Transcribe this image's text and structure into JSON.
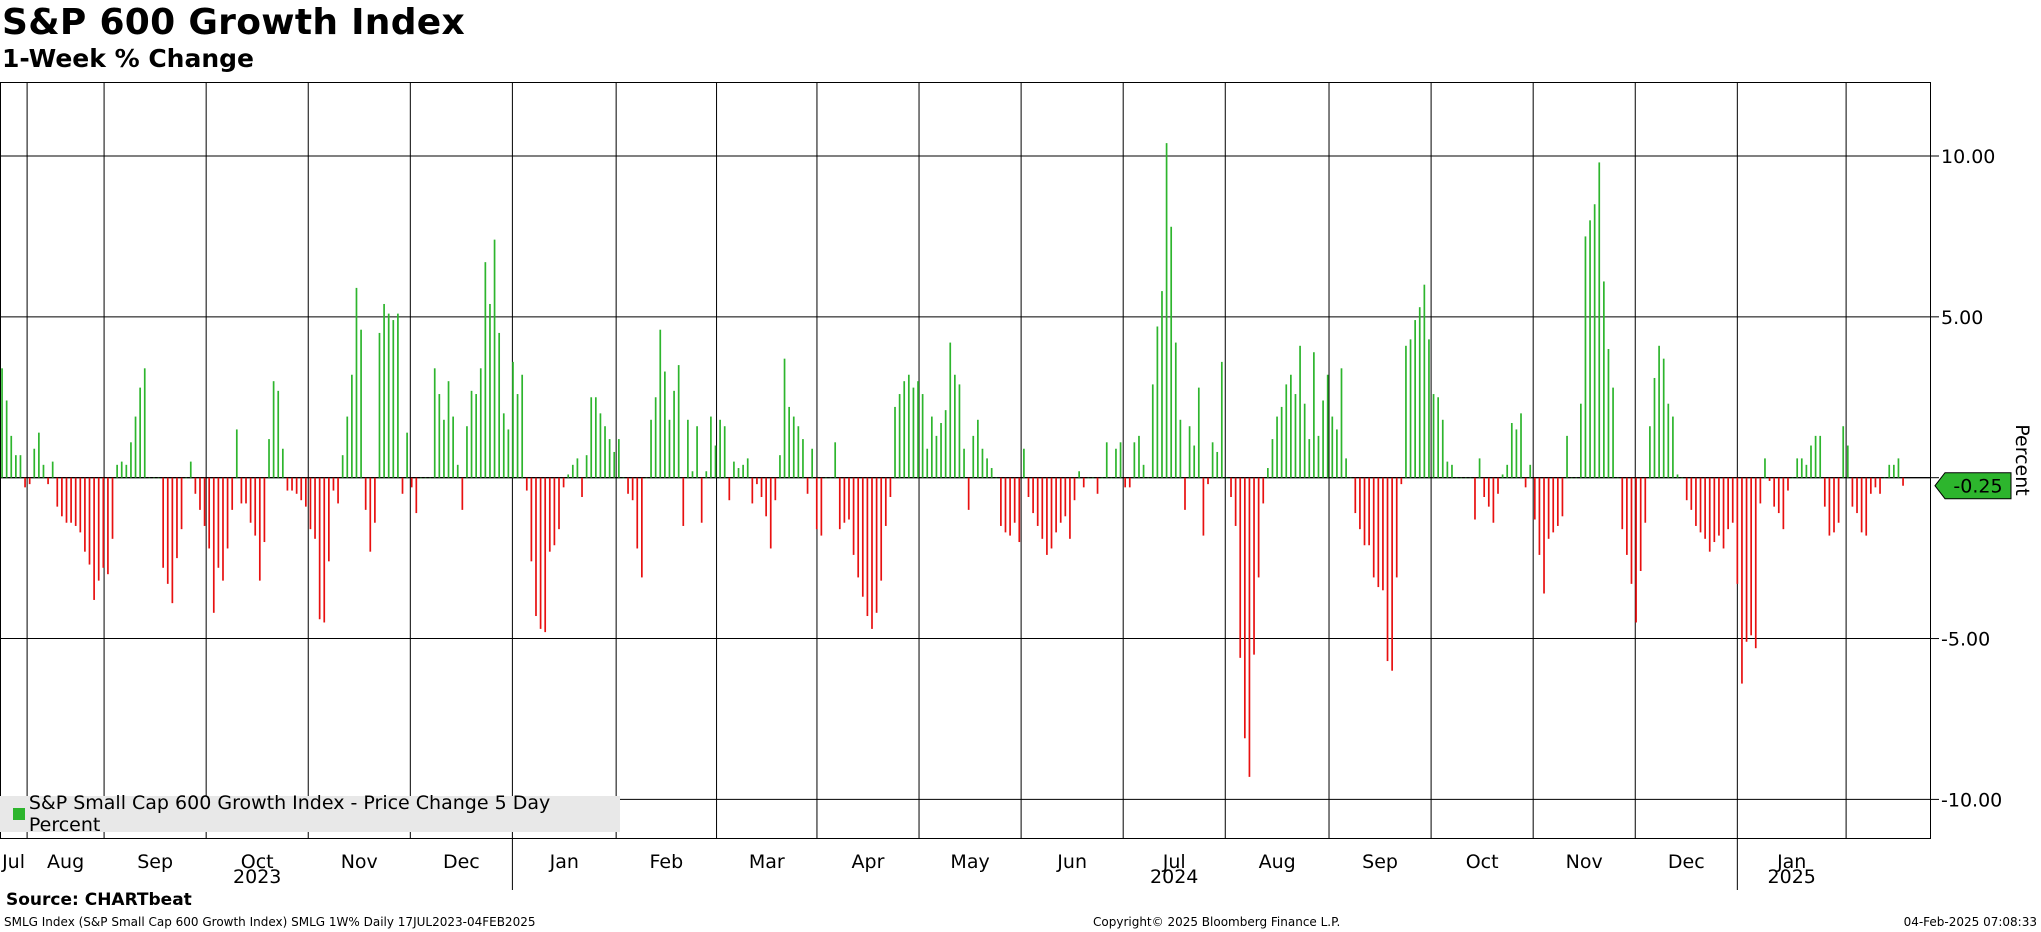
{
  "header": {
    "title": "S&P 600 Growth Index",
    "subtitle": "1-Week % Change"
  },
  "footer": {
    "source": "Source: CHARTbeat",
    "ticker_info": "SMLG Index (S&P Small Cap 600 Growth Index) SMLG 1W% Daily 17JUL2023-04FEB2025",
    "copyright": "Copyright© 2025 Bloomberg Finance L.P.",
    "timestamp": "04-Feb-2025 07:08:33"
  },
  "colors": {
    "positive": "#2db52d",
    "negative": "#e81010",
    "last_badge": "#2db52d"
  },
  "chart_data": {
    "type": "bar",
    "ylabel": "Percent",
    "ylim": [
      -11.2,
      12.3
    ],
    "yticks": [
      -10,
      -5,
      0,
      5,
      10
    ],
    "ytick_labels": [
      "-10.00",
      "-5.00",
      "",
      "5.00",
      "10.00"
    ],
    "x_range": [
      "2023-07-17",
      "2025-02-04"
    ],
    "month_ticks": [
      {
        "label": "Jul",
        "date": "2023-07-17"
      },
      {
        "label": "Aug",
        "date": "2023-08-01"
      },
      {
        "label": "Sep",
        "date": "2023-09-01"
      },
      {
        "label": "Oct",
        "date": "2023-10-01"
      },
      {
        "label": "Nov",
        "date": "2023-11-01"
      },
      {
        "label": "Dec",
        "date": "2023-12-01"
      },
      {
        "label": "Jan",
        "date": "2024-01-01"
      },
      {
        "label": "Feb",
        "date": "2024-02-01"
      },
      {
        "label": "Mar",
        "date": "2024-03-01"
      },
      {
        "label": "Apr",
        "date": "2024-04-01"
      },
      {
        "label": "May",
        "date": "2024-05-01"
      },
      {
        "label": "Jun",
        "date": "2024-06-01"
      },
      {
        "label": "Jul",
        "date": "2024-07-01"
      },
      {
        "label": "Aug",
        "date": "2024-08-01"
      },
      {
        "label": "Sep",
        "date": "2024-09-01"
      },
      {
        "label": "Oct",
        "date": "2024-10-01"
      },
      {
        "label": "Nov",
        "date": "2024-11-01"
      },
      {
        "label": "Dec",
        "date": "2024-12-01"
      },
      {
        "label": "Jan",
        "date": "2025-01-01"
      }
    ],
    "year_labels": [
      {
        "label": "2023",
        "date": "2023-10-01"
      },
      {
        "label": "2024",
        "date": "2024-07-01"
      },
      {
        "label": "2025",
        "date": "2025-01-15"
      }
    ],
    "year_dividers": [
      "2024-01-01",
      "2025-01-01"
    ],
    "series": [
      {
        "name": "S&P Small Cap 600 Growth Index - Price Change 5 Day Percent",
        "x_start": "2023-07-17",
        "x_end": "2025-02-04",
        "values": [
          3.4,
          2.4,
          1.3,
          0.7,
          0.7,
          -0.3,
          -0.2,
          0.9,
          1.4,
          0.4,
          -0.2,
          0.5,
          -0.9,
          -1.2,
          -1.4,
          -1.4,
          -1.5,
          -1.7,
          -2.3,
          -2.7,
          -3.8,
          -3.2,
          -2.8,
          -3.0,
          -1.9,
          0.4,
          0.5,
          0.4,
          1.1,
          1.9,
          2.8,
          3.4,
          0.0,
          0.0,
          0.0,
          -2.8,
          -3.3,
          -3.9,
          -2.5,
          -1.6,
          0.0,
          0.5,
          -0.5,
          -1.0,
          -1.5,
          -2.2,
          -4.2,
          -2.8,
          -3.2,
          -2.2,
          -1.0,
          1.5,
          -0.8,
          -0.8,
          -1.4,
          -1.8,
          -3.2,
          -2.0,
          1.2,
          3.0,
          2.7,
          0.9,
          -0.4,
          -0.4,
          -0.5,
          -0.7,
          -0.9,
          -1.6,
          -1.9,
          -4.4,
          -4.5,
          -2.6,
          -0.4,
          -0.8,
          0.7,
          1.9,
          3.2,
          5.9,
          4.6,
          -1.0,
          -2.3,
          -1.4,
          4.5,
          5.4,
          5.1,
          4.9,
          5.1,
          -0.5,
          1.4,
          -0.3,
          -1.1,
          0.0,
          0.0,
          0.0,
          3.4,
          2.6,
          1.8,
          3.0,
          1.9,
          0.4,
          -1.0,
          1.6,
          2.7,
          2.6,
          3.4,
          6.7,
          5.4,
          7.4,
          4.5,
          2.0,
          1.5,
          3.6,
          2.6,
          3.2,
          -0.4,
          -2.6,
          -4.3,
          -4.7,
          -4.8,
          -2.3,
          -2.1,
          -1.6,
          -0.3,
          0.1,
          0.4,
          0.6,
          -0.6,
          0.7,
          2.5,
          2.5,
          2.0,
          1.6,
          1.2,
          0.8,
          1.2,
          0.0,
          -0.5,
          -0.7,
          -2.2,
          -3.1,
          0.0,
          1.8,
          2.5,
          4.6,
          3.3,
          1.8,
          2.7,
          3.5,
          -1.5,
          1.8,
          0.2,
          1.6,
          -1.4,
          0.2,
          1.9,
          1.0,
          1.8,
          1.6,
          -0.7,
          0.5,
          0.3,
          0.4,
          0.6,
          -0.8,
          -0.2,
          -0.6,
          -1.2,
          -2.2,
          -0.7,
          0.7,
          3.7,
          2.2,
          1.9,
          1.6,
          1.2,
          -0.5,
          0.9,
          -1.6,
          -1.8,
          0.0,
          0.0,
          1.1,
          -1.6,
          -1.4,
          -1.3,
          -2.4,
          -3.1,
          -3.7,
          -4.3,
          -4.7,
          -4.2,
          -3.2,
          -1.5,
          -0.6,
          2.2,
          2.6,
          3.0,
          3.2,
          2.8,
          3.0,
          2.6,
          0.9,
          1.9,
          1.3,
          1.7,
          2.1,
          4.2,
          3.2,
          2.9,
          0.9,
          -1.0,
          1.3,
          1.8,
          0.9,
          0.6,
          0.3,
          0.0,
          -1.5,
          -1.7,
          -1.8,
          -1.4,
          -2.0,
          0.9,
          -0.6,
          -1.1,
          -1.5,
          -1.9,
          -2.4,
          -2.2,
          -1.7,
          -1.4,
          -1.2,
          -1.9,
          -0.7,
          0.2,
          -0.3,
          0.0,
          0.0,
          -0.5,
          0.0,
          1.1,
          0.0,
          0.9,
          1.1,
          -0.3,
          -0.3,
          1.1,
          1.3,
          0.4,
          0.0,
          2.9,
          4.7,
          5.8,
          10.4,
          7.8,
          4.2,
          1.8,
          -1.0,
          1.6,
          1.0,
          2.8,
          -1.8,
          -0.2,
          1.1,
          0.8,
          3.6,
          0.0,
          -0.6,
          -1.5,
          -5.6,
          -8.1,
          -9.3,
          -5.5,
          -3.1,
          -0.8,
          0.3,
          1.2,
          1.9,
          2.2,
          2.9,
          3.2,
          2.6,
          4.1,
          2.3,
          1.2,
          3.9,
          1.3,
          2.4,
          3.2,
          1.9,
          1.5,
          3.4,
          0.6,
          0.0,
          -1.1,
          -1.6,
          -2.1,
          -2.1,
          -3.1,
          -3.4,
          -3.5,
          -5.7,
          -6.0,
          -3.1,
          -0.2,
          4.1,
          4.3,
          4.9,
          5.3,
          6.0,
          4.3,
          2.6,
          2.5,
          1.8,
          0.5,
          0.4,
          0.0,
          0.0,
          0.0,
          0.0,
          -1.3,
          0.6,
          -0.6,
          -0.9,
          -1.4,
          -0.5,
          0.1,
          0.4,
          1.7,
          1.5,
          2.0,
          -0.3,
          0.4,
          -1.3,
          -2.4,
          -3.6,
          -1.9,
          -1.7,
          -1.5,
          -1.2,
          1.3,
          0.0,
          0.0,
          2.3,
          7.5,
          8.0,
          8.5,
          9.8,
          6.1,
          4.0,
          2.8,
          0.0,
          -1.6,
          -2.4,
          -3.3,
          -4.5,
          -2.9,
          -1.4,
          1.6,
          3.1,
          4.1,
          3.7,
          2.3,
          1.9,
          0.1,
          0.0,
          -0.7,
          -1.0,
          -1.5,
          -1.7,
          -1.9,
          -2.3,
          -2.0,
          -1.8,
          -2.2,
          -1.6,
          -1.4,
          -3.3,
          -6.4,
          -5.1,
          -4.9,
          -5.3,
          -0.8,
          0.6,
          -0.1,
          -0.9,
          -1.1,
          -1.6,
          -0.4,
          0.0,
          0.6,
          0.6,
          0.4,
          1.0,
          1.3,
          1.3,
          -0.9,
          -1.8,
          -1.7,
          -1.4,
          1.6,
          1.0,
          -0.9,
          -1.1,
          -1.7,
          -1.8,
          -0.5,
          -0.3,
          -0.5,
          0.0,
          0.4,
          0.4,
          0.6,
          -0.25
        ]
      }
    ],
    "last_value": -0.25,
    "last_value_label": "-0.25",
    "legend": "bottom-left",
    "grid": true
  }
}
